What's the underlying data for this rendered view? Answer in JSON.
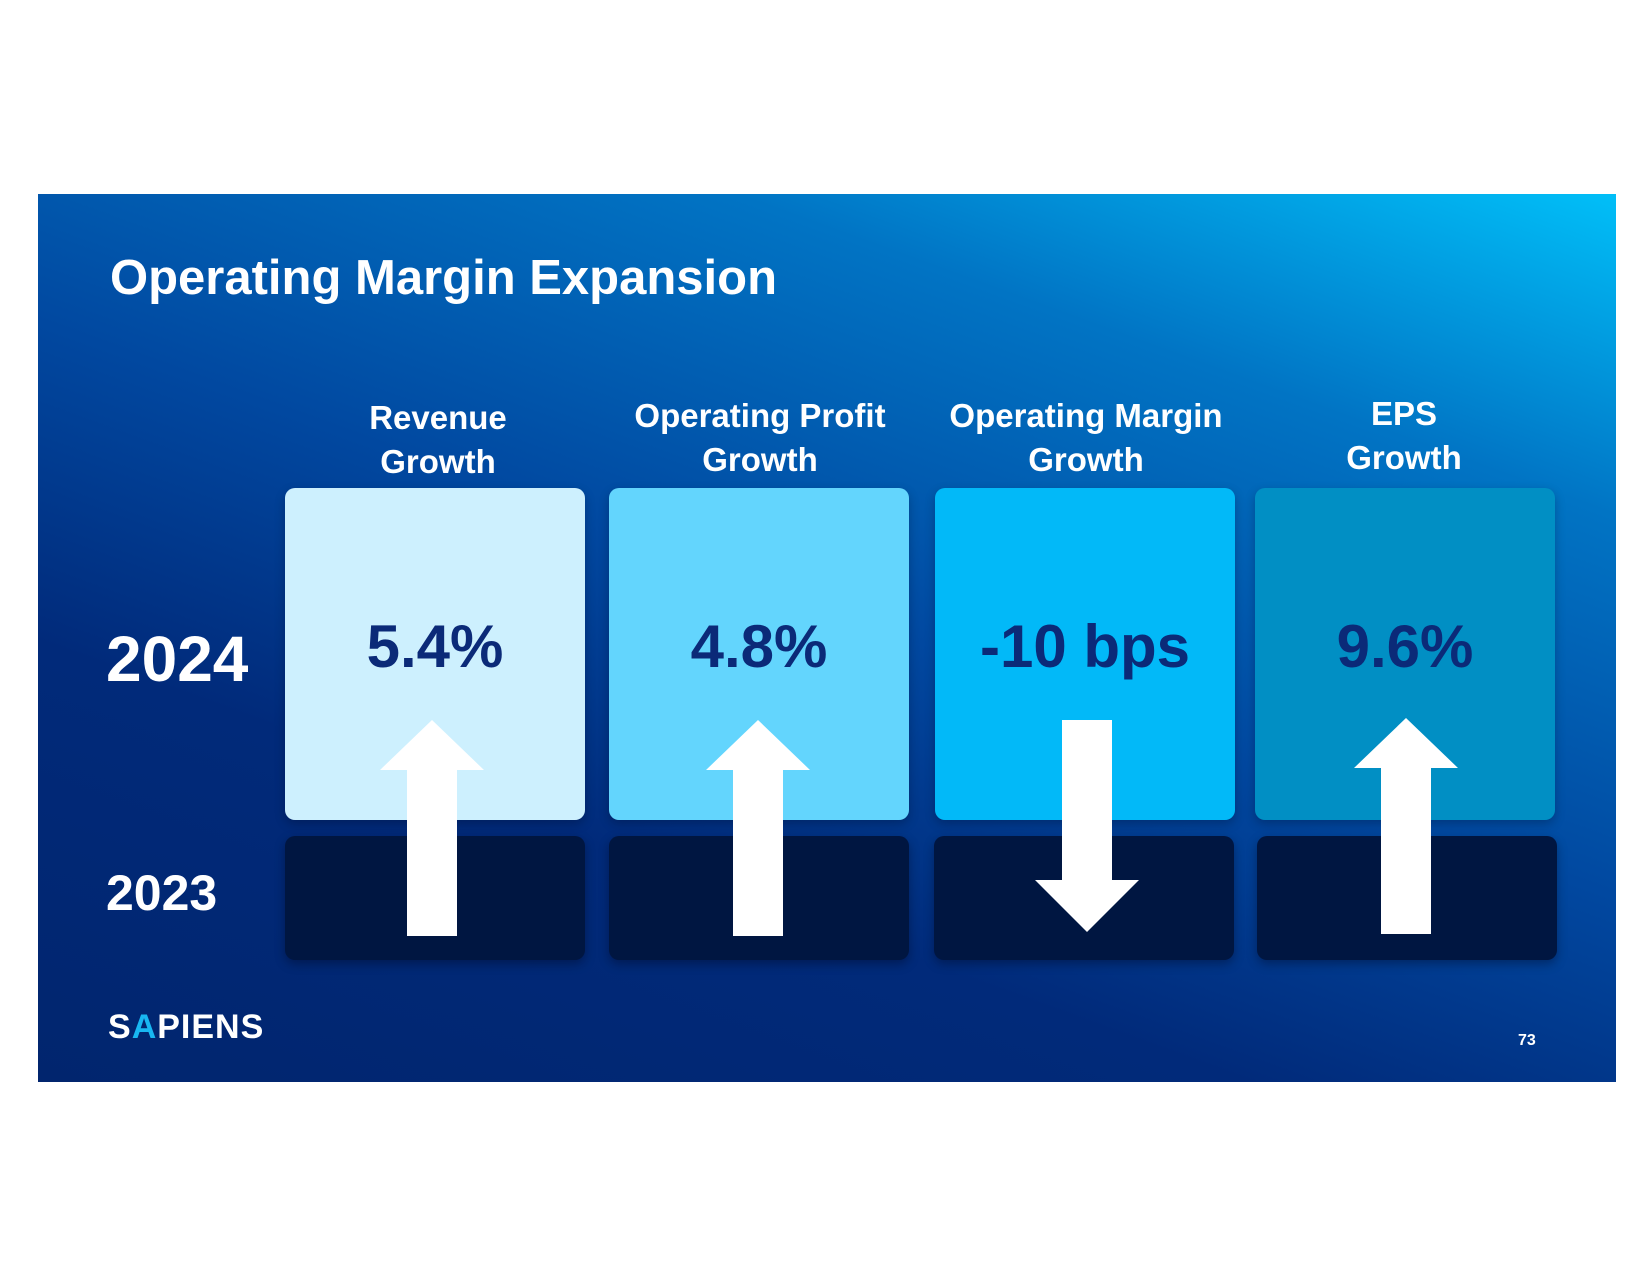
{
  "slide": {
    "title": "Operating Margin Expansion",
    "years": {
      "current": "2024",
      "previous": "2023"
    },
    "columns": [
      {
        "label_line1": "Revenue",
        "label_line2": "Growth",
        "value": "5.4%",
        "direction": "up",
        "box_color": "#cdf0fe"
      },
      {
        "label_line1": "Operating Profit",
        "label_line2": "Growth",
        "value": "4.8%",
        "direction": "up",
        "box_color": "#63d5fd"
      },
      {
        "label_line1": "Operating Margin",
        "label_line2": "Growth",
        "value": "-10 bps",
        "direction": "down",
        "box_color": "#02b9f8"
      },
      {
        "label_line1": "EPS",
        "label_line2": "Growth",
        "value": "9.6%",
        "direction": "up",
        "box_color": "#018fc4"
      }
    ],
    "logo": {
      "text_before": "S",
      "accent": "A",
      "text_after": "PIENS"
    },
    "page_number": "73",
    "colors": {
      "bottom_box": "#001641",
      "value_text": "#0b2a78",
      "arrow": "#ffffff"
    }
  }
}
